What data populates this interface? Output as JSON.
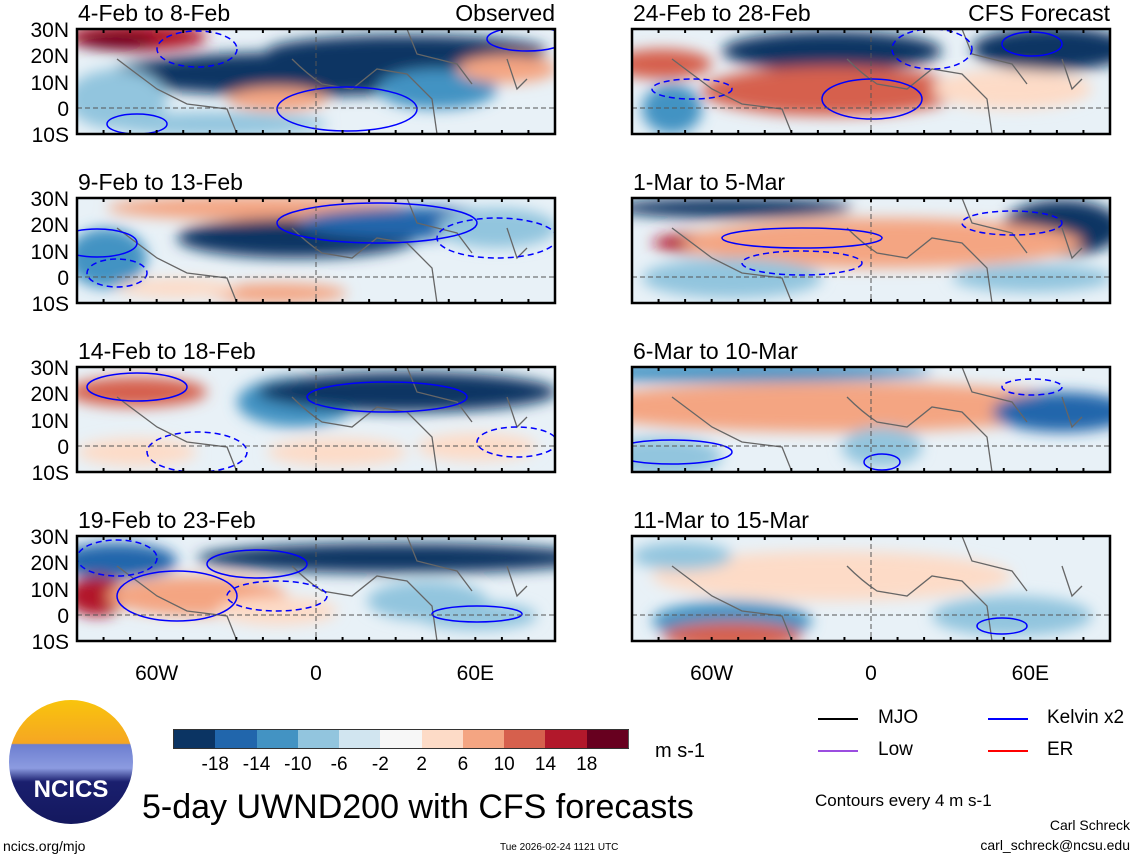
{
  "figure": {
    "title": "5-day UWND200 with CFS forecasts",
    "units": "m s-1",
    "contour_note": "Contours every 4 m s-1",
    "author": "Carl Schreck",
    "email": "carl_schreck@ncsu.edu",
    "url": "ncics.org/mjo",
    "timestamp": "Tue 2026-02-24 1121 UTC",
    "logo_text": "NCICS"
  },
  "columns": {
    "left": "Observed",
    "right": "CFS Forecast"
  },
  "panels_left": [
    {
      "title": "4-Feb to 8-Feb"
    },
    {
      "title": "9-Feb to 13-Feb"
    },
    {
      "title": "14-Feb to 18-Feb"
    },
    {
      "title": "19-Feb to 23-Feb"
    }
  ],
  "panels_right": [
    {
      "title": "24-Feb to 28-Feb"
    },
    {
      "title": "1-Mar to 5-Mar"
    },
    {
      "title": "6-Mar to 10-Mar"
    },
    {
      "title": "11-Mar to 15-Mar"
    }
  ],
  "lat_labels": [
    "30N",
    "20N",
    "10N",
    "0",
    "10S"
  ],
  "lon_labels": [
    "60W",
    "0",
    "60E"
  ],
  "colorbar": {
    "labels": [
      "-18",
      "-14",
      "-10",
      "-6",
      "-2",
      "2",
      "6",
      "10",
      "14",
      "18"
    ],
    "colors": [
      "#0b3463",
      "#2166ac",
      "#4393c3",
      "#92c5de",
      "#d1e5f0",
      "#f7f7f7",
      "#fddbc7",
      "#f4a582",
      "#d6604d",
      "#b2182b",
      "#67001f"
    ]
  },
  "legend": [
    {
      "label": "MJO",
      "color": "#000000"
    },
    {
      "label": "Kelvin x2",
      "color": "#0000ff"
    },
    {
      "label": "Low",
      "color": "#9b4de0"
    },
    {
      "label": "ER",
      "color": "#ff0000"
    }
  ]
}
